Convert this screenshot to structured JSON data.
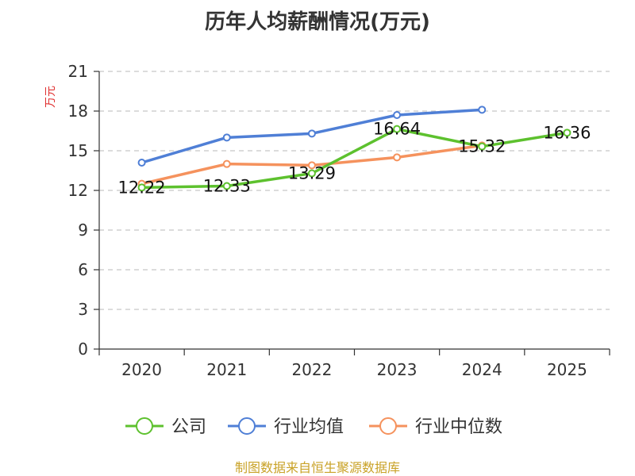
{
  "chart_data": {
    "type": "line",
    "title": "历年人均薪酬情况(万元)",
    "ylabel": "万元",
    "xlabel": "",
    "categories": [
      "2020",
      "2021",
      "2022",
      "2023",
      "2024",
      "2025"
    ],
    "ylim": [
      0,
      21
    ],
    "yticks": [
      0,
      3,
      6,
      9,
      12,
      15,
      18,
      21
    ],
    "grid": true,
    "legend_position": "bottom",
    "series": [
      {
        "name": "公司",
        "color": "#5dc12e",
        "values": [
          12.22,
          12.33,
          13.29,
          16.64,
          15.32,
          16.36
        ],
        "labels": [
          "12.22",
          "12.33",
          "13.29",
          "16.64",
          "15.32",
          "16.36"
        ]
      },
      {
        "name": "行业均值",
        "color": "#4f7fd6",
        "values": [
          14.1,
          16.0,
          16.3,
          17.7,
          18.1,
          null
        ]
      },
      {
        "name": "行业中位数",
        "color": "#f5925d",
        "values": [
          12.5,
          14.0,
          13.9,
          14.5,
          15.4,
          null
        ]
      }
    ],
    "source": "制图数据来自恒生聚源数据库"
  }
}
